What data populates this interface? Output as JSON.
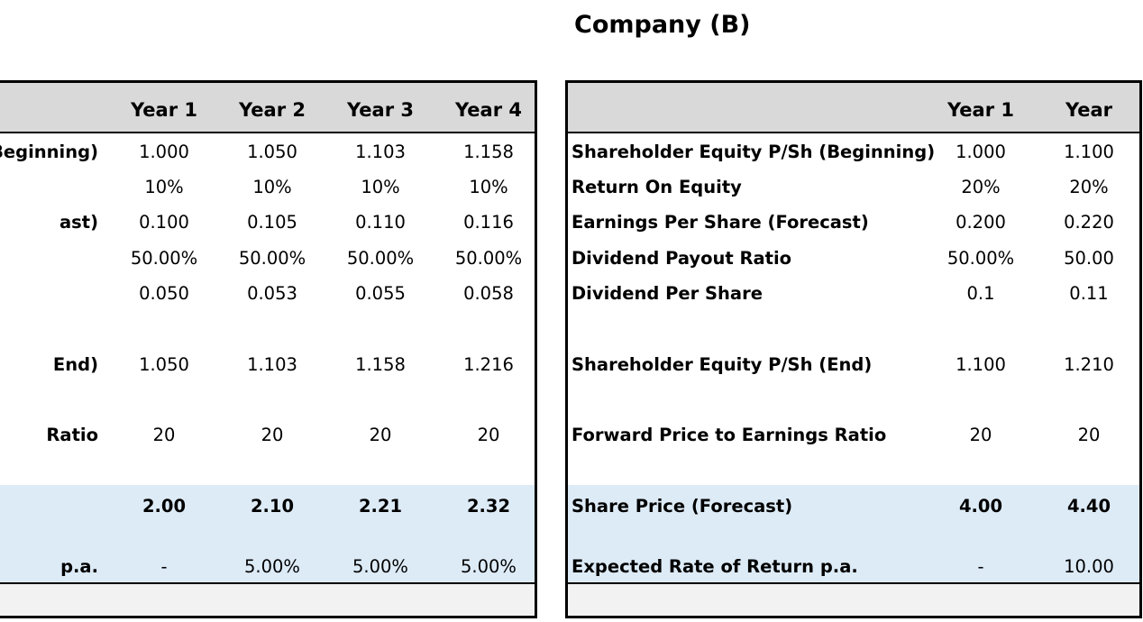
{
  "title": "Company (B)",
  "left_table": {
    "headers": [
      "Year 1",
      "Year 2",
      "Year 3",
      "Year 4"
    ],
    "rows": [
      {
        "label": "Beginning)",
        "values": [
          "1.000",
          "1.050",
          "1.103",
          "1.158"
        ]
      },
      {
        "label": "",
        "values": [
          "10%",
          "10%",
          "10%",
          "10%"
        ]
      },
      {
        "label": "ast)",
        "values": [
          "0.100",
          "0.105",
          "0.110",
          "0.116"
        ]
      },
      {
        "label": "",
        "values": [
          "50.00%",
          "50.00%",
          "50.00%",
          "50.00%"
        ]
      },
      {
        "label": "",
        "values": [
          "0.050",
          "0.053",
          "0.055",
          "0.058"
        ]
      },
      {
        "label": "End)",
        "values": [
          "1.050",
          "1.103",
          "1.158",
          "1.216"
        ]
      },
      {
        "label": "Ratio",
        "values": [
          "20",
          "20",
          "20",
          "20"
        ]
      },
      {
        "label": "",
        "values": [
          "2.00",
          "2.10",
          "2.21",
          "2.32"
        ]
      },
      {
        "label": "p.a.",
        "values": [
          "-",
          "5.00%",
          "5.00%",
          "5.00%"
        ]
      }
    ]
  },
  "right_table": {
    "headers": [
      "Year 1",
      "Year"
    ],
    "rows": [
      {
        "label": "Shareholder Equity P/Sh (Beginning)",
        "values": [
          "1.000",
          "1.100"
        ]
      },
      {
        "label": "Return On Equity",
        "values": [
          "20%",
          "20%"
        ]
      },
      {
        "label": "Earnings Per Share (Forecast)",
        "values": [
          "0.200",
          "0.220"
        ]
      },
      {
        "label": "Dividend Payout Ratio",
        "values": [
          "50.00%",
          "50.00"
        ]
      },
      {
        "label": "Dividend Per Share",
        "values": [
          "0.1",
          "0.11"
        ]
      },
      {
        "label": "Shareholder Equity P/Sh (End)",
        "values": [
          "1.100",
          "1.210"
        ]
      },
      {
        "label": "Forward Price to Earnings Ratio",
        "values": [
          "20",
          "20"
        ]
      },
      {
        "label": "Share Price (Forecast)",
        "values": [
          "4.00",
          "4.40"
        ]
      },
      {
        "label": "Expected Rate of Return p.a.",
        "values": [
          "-",
          "10.00"
        ]
      }
    ]
  }
}
